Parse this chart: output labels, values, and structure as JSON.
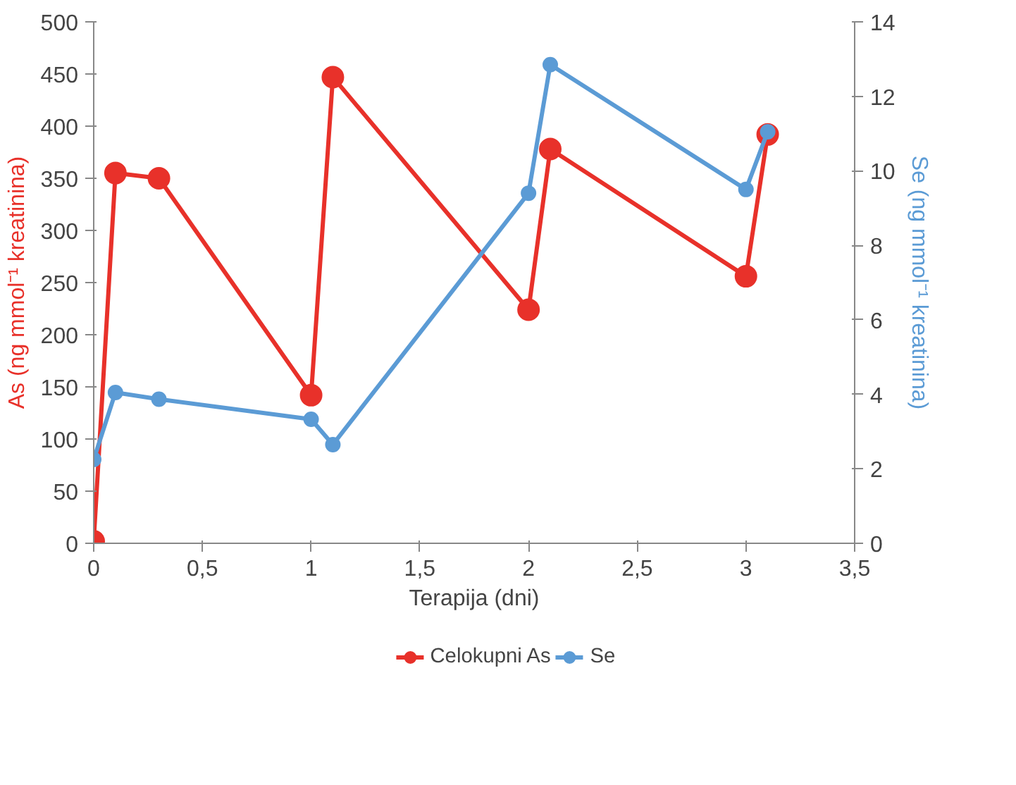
{
  "chart_data": {
    "type": "line",
    "xlabel": "Terapija (dni)",
    "ylabel": "As (ng mmol⁻¹ kreatinina)",
    "y2label": "Se (ng mmol⁻¹ kreatinina)",
    "x": [
      0,
      0.1,
      0.3,
      1,
      1.1,
      2,
      2.1,
      3,
      3.1
    ],
    "series": [
      {
        "name": "Celokupni As",
        "color": "#e8312a",
        "values": [
          2,
          355,
          350,
          142,
          447,
          224,
          378,
          256,
          392
        ]
      },
      {
        "name": "Se",
        "color": "#5b9bd5",
        "axis": "y2",
        "values": [
          2.25,
          4.05,
          3.87,
          3.33,
          2.65,
          9.4,
          12.85,
          9.5,
          11.05
        ]
      }
    ],
    "xlim": [
      0,
      3.5
    ],
    "xticks": [
      0,
      {
        "value": 0.5,
        "label": "0,5"
      },
      1,
      {
        "value": 1.5,
        "label": "1,5"
      },
      2,
      {
        "value": 2.5,
        "label": "2,5"
      },
      3,
      {
        "value": 3.5,
        "label": "3,5"
      }
    ],
    "ylim": [
      0,
      500
    ],
    "yticks": [
      0,
      50,
      100,
      150,
      200,
      250,
      300,
      350,
      400,
      450,
      500
    ],
    "y2lim": [
      0,
      14
    ],
    "y2ticks": [
      0,
      2,
      4,
      6,
      8,
      10,
      12,
      14
    ],
    "grid": false,
    "legend": "bottom",
    "marker": "circle",
    "line_style": "solid"
  }
}
